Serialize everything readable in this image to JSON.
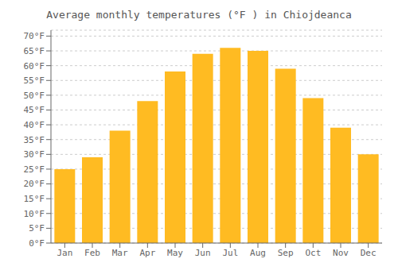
{
  "chart_data": {
    "type": "bar",
    "title": "Average monthly temperatures (°F ) in Chiojdeanca",
    "categories": [
      "Jan",
      "Feb",
      "Mar",
      "Apr",
      "May",
      "Jun",
      "Jul",
      "Aug",
      "Sep",
      "Oct",
      "Nov",
      "Dec"
    ],
    "values": [
      25,
      29,
      38,
      48,
      58,
      64,
      66,
      65,
      59,
      49,
      39,
      30
    ],
    "color": "#FFBB22",
    "ylim": [
      0,
      72
    ],
    "yticks": [
      {
        "value": 0,
        "label": "0°F"
      },
      {
        "value": 5,
        "label": "5°F"
      },
      {
        "value": 10,
        "label": "10°F"
      },
      {
        "value": 15,
        "label": "15°F"
      },
      {
        "value": 20,
        "label": "20°F"
      },
      {
        "value": 25,
        "label": "25°F"
      },
      {
        "value": 30,
        "label": "30°F"
      },
      {
        "value": 35,
        "label": "35°F"
      },
      {
        "value": 40,
        "label": "40°F"
      },
      {
        "value": 45,
        "label": "45°F"
      },
      {
        "value": 50,
        "label": "50°F"
      },
      {
        "value": 55,
        "label": "55°F"
      },
      {
        "value": 60,
        "label": "60°F"
      },
      {
        "value": 65,
        "label": "65°F"
      },
      {
        "value": 70,
        "label": "70°F"
      }
    ],
    "grid": true
  }
}
